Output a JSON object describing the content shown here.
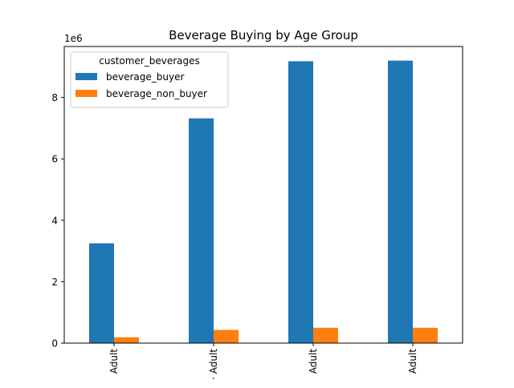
{
  "chart_data": {
    "type": "bar",
    "title": "Beverage Buying by Age Group",
    "xlabel": "",
    "ylabel": "",
    "y_offset_label": "1e6",
    "categories": [
      "Adult",
      "Adult",
      "Adult",
      "Adult"
    ],
    "category_label_visible": [
      "Adult",
      "· Adult",
      "Adult",
      "Adult"
    ],
    "series": [
      {
        "name": "beverage_buyer",
        "color": "#1f77b4",
        "values": [
          3250000,
          7320000,
          9180000,
          9200000
        ]
      },
      {
        "name": "beverage_non_buyer",
        "color": "#ff7f0e",
        "values": [
          190000,
          430000,
          500000,
          500000
        ]
      }
    ],
    "ylim": [
      0,
      9660000
    ],
    "yticks": [
      0,
      2000000,
      4000000,
      6000000,
      8000000
    ],
    "ytick_labels": [
      "0",
      "2",
      "4",
      "6",
      "8"
    ],
    "legend": {
      "title": "customer_beverages",
      "placement": "upper-left"
    },
    "grid": false
  }
}
